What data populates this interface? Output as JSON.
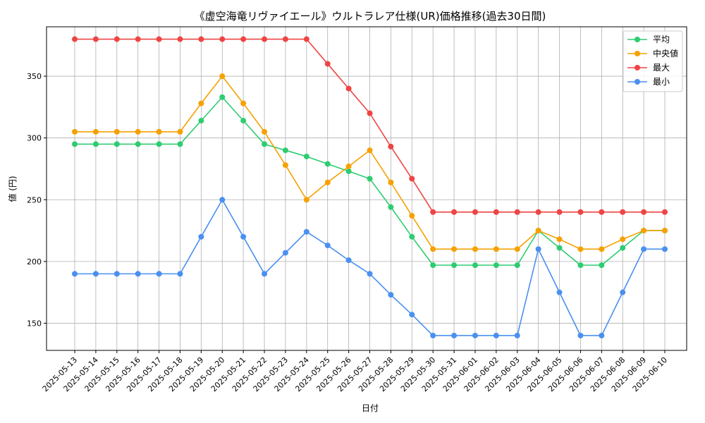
{
  "chart_data": {
    "type": "line",
    "title": "《虚空海竜リヴァイエール》ウルトラレア仕様(UR)価格推移(過去30日間)",
    "xlabel": "日付",
    "ylabel": "値 (円)",
    "ylim": [
      128,
      390
    ],
    "yticks": [
      150,
      200,
      250,
      300,
      350
    ],
    "grid": true,
    "legend_position": "top-right",
    "categories": [
      "2025-05-13",
      "2025-05-14",
      "2025-05-15",
      "2025-05-16",
      "2025-05-17",
      "2025-05-18",
      "2025-05-19",
      "2025-05-20",
      "2025-05-21",
      "2025-05-22",
      "2025-05-23",
      "2025-05-24",
      "2025-05-25",
      "2025-05-26",
      "2025-05-27",
      "2025-05-28",
      "2025-05-29",
      "2025-05-30",
      "2025-05-31",
      "2025-06-01",
      "2025-06-02",
      "2025-06-03",
      "2025-06-04",
      "2025-06-05",
      "2025-06-06",
      "2025-06-07",
      "2025-06-08",
      "2025-06-09",
      "2025-06-10"
    ],
    "series": [
      {
        "name": "平均",
        "color": "#2ecc71",
        "values": [
          295,
          295,
          295,
          295,
          295,
          295,
          314,
          333,
          314,
          295,
          290,
          285,
          279,
          273,
          267,
          244,
          220,
          197,
          197,
          197,
          197,
          197,
          225,
          211,
          197,
          197,
          211,
          225,
          225
        ]
      },
      {
        "name": "中央値",
        "color": "#f5a100",
        "values": [
          305,
          305,
          305,
          305,
          305,
          305,
          328,
          350,
          328,
          305,
          278,
          250,
          264,
          277,
          290,
          264,
          237,
          210,
          210,
          210,
          210,
          210,
          225,
          218,
          210,
          210,
          218,
          225,
          225
        ]
      },
      {
        "name": "最大",
        "color": "#ef4444",
        "values": [
          380,
          380,
          380,
          380,
          380,
          380,
          380,
          380,
          380,
          380,
          380,
          380,
          360,
          340,
          320,
          293,
          267,
          240,
          240,
          240,
          240,
          240,
          240,
          240,
          240,
          240,
          240,
          240,
          240
        ]
      },
      {
        "name": "最小",
        "color": "#4a90f0",
        "values": [
          190,
          190,
          190,
          190,
          190,
          190,
          220,
          250,
          220,
          190,
          207,
          224,
          213,
          201,
          190,
          173,
          157,
          140,
          140,
          140,
          140,
          140,
          210,
          175,
          140,
          140,
          175,
          210,
          210
        ]
      }
    ]
  }
}
